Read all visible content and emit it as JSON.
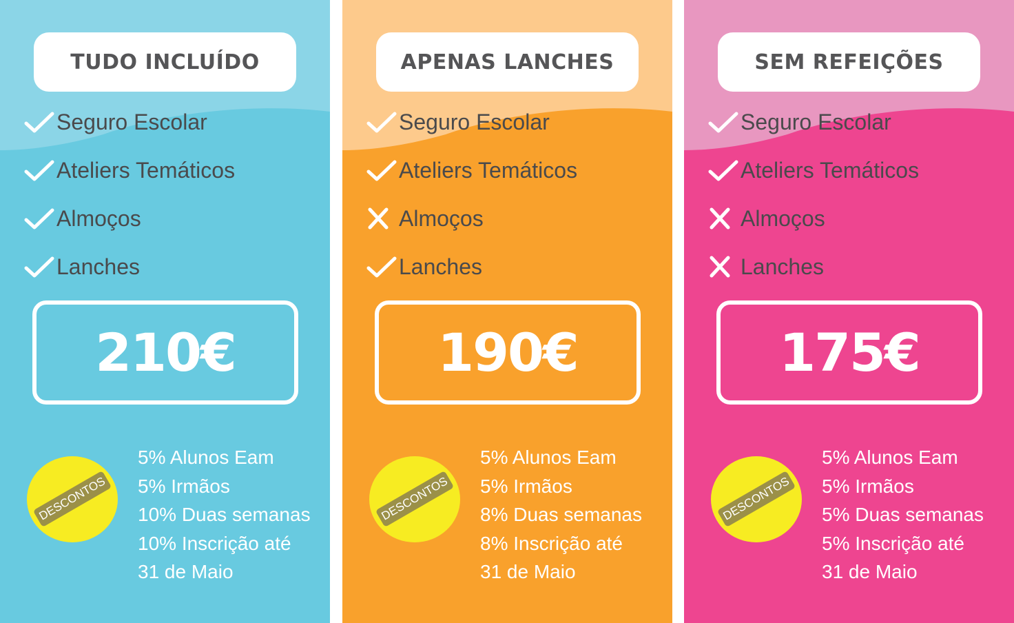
{
  "plans": [
    {
      "title": "TUDO INCLUÍDO",
      "color": "#68cae0",
      "light": "#8bd5e7",
      "features": [
        {
          "label": "Seguro Escolar",
          "included": true
        },
        {
          "label": "Ateliers Temáticos",
          "included": true
        },
        {
          "label": "Almoços",
          "included": true
        },
        {
          "label": "Lanches",
          "included": true
        }
      ],
      "price": "210€",
      "badge": "DESCONTOS",
      "discounts": [
        "5% Alunos Eam",
        "5% Irmãos",
        "10% Duas semanas",
        "10% Inscrição até",
        "31 de Maio"
      ]
    },
    {
      "title": "APENAS LANCHES",
      "color": "#f9a12c",
      "light": "#fdca8c",
      "features": [
        {
          "label": "Seguro Escolar",
          "included": true
        },
        {
          "label": "Ateliers Temáticos",
          "included": true
        },
        {
          "label": "Almoços",
          "included": false
        },
        {
          "label": "Lanches",
          "included": true
        }
      ],
      "price": "190€",
      "badge": "DESCONTOS",
      "discounts": [
        "5% Alunos Eam",
        "5% Irmãos",
        "8% Duas semanas",
        "8% Inscrição até",
        "31 de Maio"
      ]
    },
    {
      "title": "SEM REFEIÇÕES",
      "color": "#ee4590",
      "light": "#e897c0",
      "features": [
        {
          "label": "Seguro Escolar",
          "included": true
        },
        {
          "label": "Ateliers Temáticos",
          "included": true
        },
        {
          "label": "Almoços",
          "included": false
        },
        {
          "label": "Lanches",
          "included": false
        }
      ],
      "price": "175€",
      "badge": "DESCONTOS",
      "discounts": [
        "5% Alunos Eam",
        "5% Irmãos",
        "5% Duas semanas",
        "5% Inscrição até",
        "31 de Maio"
      ]
    }
  ]
}
